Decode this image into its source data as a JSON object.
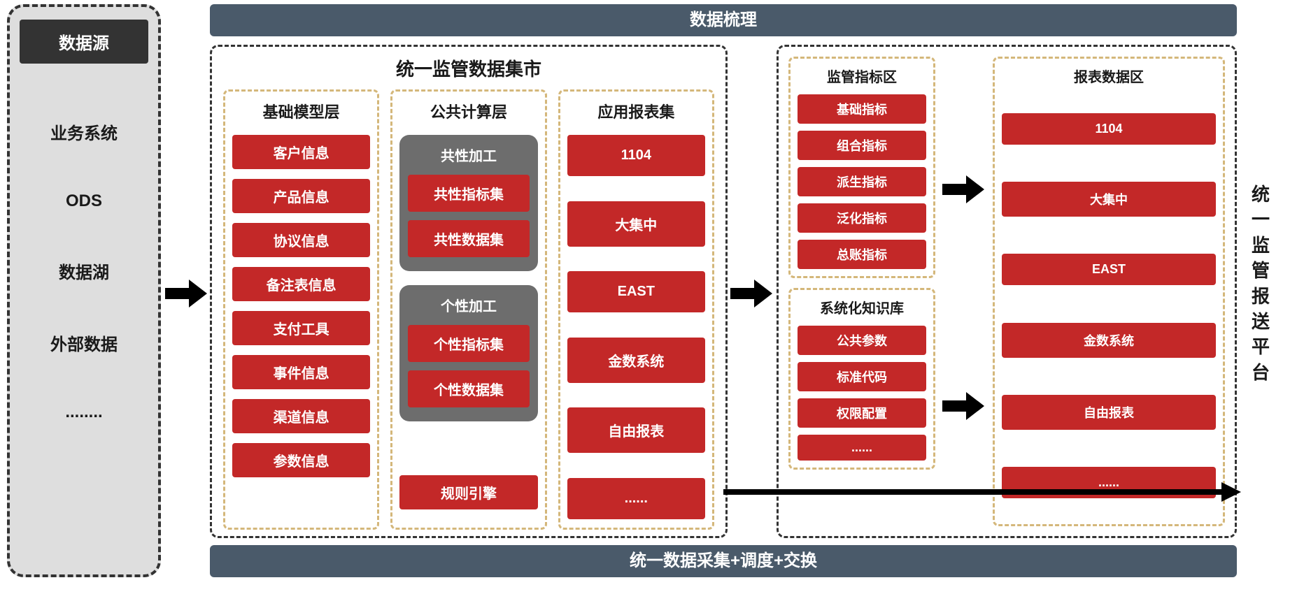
{
  "colors": {
    "red": "#c32828",
    "grey_panel": "#6d6d6d",
    "header_bar": "#4a5a6a",
    "left_bg": "#dedede",
    "dashed_main": "#333333",
    "dashed_inner": "#d4b77a"
  },
  "left": {
    "title": "数据源",
    "items": [
      "业务系统",
      "ODS",
      "数据湖",
      "外部数据",
      "........"
    ]
  },
  "top_bar": "数据梳理",
  "bottom_bar": "统一数据采集+调度+交换",
  "main": {
    "title": "统一监管数据集市",
    "col1": {
      "title": "基础模型层",
      "items": [
        "客户信息",
        "产品信息",
        "协议信息",
        "备注表信息",
        "支付工具",
        "事件信息",
        "渠道信息",
        "参数信息"
      ]
    },
    "col2": {
      "title": "公共计算层",
      "group1": {
        "title": "共性加工",
        "items": [
          "共性指标集",
          "共性数据集"
        ]
      },
      "group2": {
        "title": "个性加工",
        "items": [
          "个性指标集",
          "个性数据集"
        ]
      },
      "tail": "规则引擎"
    },
    "col3": {
      "title": "应用报表集",
      "items": [
        "1104",
        "大集中",
        "EAST",
        "金数系统",
        "自由报表",
        "......"
      ]
    }
  },
  "right": {
    "sub1": {
      "title": "监管指标区",
      "items": [
        "基础指标",
        "组合指标",
        "派生指标",
        "泛化指标",
        "总账指标"
      ]
    },
    "sub2": {
      "title": "系统化知识库",
      "items": [
        "公共参数",
        "标准代码",
        "权限配置",
        "......"
      ]
    },
    "sub3": {
      "title": "报表数据区",
      "items": [
        "1104",
        "大集中",
        "EAST",
        "金数系统",
        "自由报表",
        "......"
      ]
    }
  },
  "vtext": "统一监管报送平台"
}
